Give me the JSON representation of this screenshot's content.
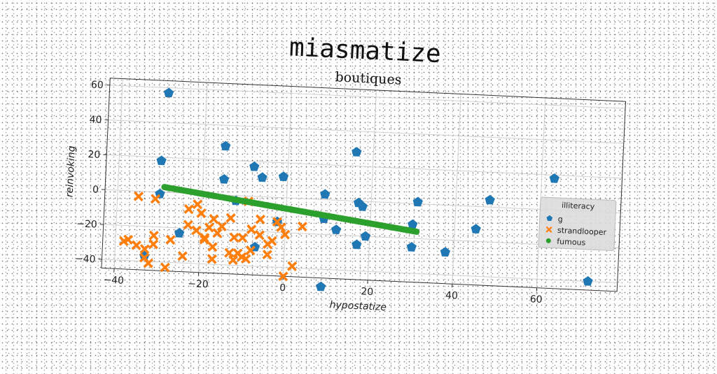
{
  "suptitle": "miasmatize",
  "chart_data": {
    "type": "scatter",
    "title": "boutiques",
    "xlabel": "hypostatize",
    "ylabel": "reinvoking",
    "xlim": [
      -43,
      79
    ],
    "ylim": [
      -45,
      64
    ],
    "xticks": [
      -40,
      -20,
      0,
      20,
      40,
      60
    ],
    "yticks": [
      -40,
      -20,
      0,
      20,
      40,
      60
    ],
    "xtick_labels": [
      "−40",
      "−20",
      "0",
      "20",
      "40",
      "60"
    ],
    "ytick_labels": [
      "−40",
      "−20",
      "0",
      "20",
      "40",
      "60"
    ],
    "grid": true,
    "legend": {
      "title": "illiteracy",
      "location": "center-right",
      "entries": [
        "g",
        "strandlooper",
        "fumous"
      ]
    },
    "series": [
      {
        "name": "g",
        "marker": "pentagon",
        "color": "#1f77b4",
        "points": [
          [
            -29,
            57
          ],
          [
            -30,
            18
          ],
          [
            -30,
            -1
          ],
          [
            -15,
            28
          ],
          [
            -15,
            9
          ],
          [
            -8,
            17
          ],
          [
            -6,
            11
          ],
          [
            -1,
            12
          ],
          [
            -12,
            -3
          ],
          [
            -2,
            -14
          ],
          [
            -25,
            -23
          ],
          [
            -33,
            -37
          ],
          [
            -7,
            -29
          ],
          [
            9,
            3
          ],
          [
            16,
            28
          ],
          [
            17,
            -1
          ],
          [
            18,
            -3
          ],
          [
            31,
            1
          ],
          [
            12,
            -17
          ],
          [
            19,
            -20
          ],
          [
            17,
            -25
          ],
          [
            30,
            -25
          ],
          [
            9,
            -11
          ],
          [
            30,
            -12
          ],
          [
            38,
            -27
          ],
          [
            48,
            4
          ],
          [
            45,
            -13
          ],
          [
            63,
            18
          ],
          [
            9,
            -50
          ],
          [
            72,
            -40
          ]
        ]
      },
      {
        "name": "strandlooper",
        "marker": "X",
        "color": "#ff7f0e",
        "points": [
          [
            -35,
            -3
          ],
          [
            -31,
            -4
          ],
          [
            -37,
            -28
          ],
          [
            -38,
            -29
          ],
          [
            -35,
            -31
          ],
          [
            -33,
            -33
          ],
          [
            -31,
            -25
          ],
          [
            -31,
            -30
          ],
          [
            -33,
            -38
          ],
          [
            -32,
            -41
          ],
          [
            -28,
            -43
          ],
          [
            -27,
            -27
          ],
          [
            -24,
            -36
          ],
          [
            -23,
            -9
          ],
          [
            -21,
            -6
          ],
          [
            -20,
            -11
          ],
          [
            -23,
            -18
          ],
          [
            -21,
            -21
          ],
          [
            -19,
            -25
          ],
          [
            -19,
            -26
          ],
          [
            -18,
            -19
          ],
          [
            -17,
            -14
          ],
          [
            -16,
            -22
          ],
          [
            -17,
            -30
          ],
          [
            -15,
            -18
          ],
          [
            -13,
            -13
          ],
          [
            -12,
            -24
          ],
          [
            -13,
            -33
          ],
          [
            -12,
            -37
          ],
          [
            -11,
            -33
          ],
          [
            -10,
            -35
          ],
          [
            -9,
            -36
          ],
          [
            -8,
            -31
          ],
          [
            -10,
            -24
          ],
          [
            -8,
            -19
          ],
          [
            -6,
            -13
          ],
          [
            -6,
            -22
          ],
          [
            -4,
            -27
          ],
          [
            -3,
            -25
          ],
          [
            -4,
            -33
          ],
          [
            -1,
            -17
          ],
          [
            -2,
            -14
          ],
          [
            0,
            -21
          ],
          [
            0,
            -45
          ],
          [
            2,
            -39
          ],
          [
            4,
            -16
          ],
          [
            -9,
            -3
          ],
          [
            -17,
            -37
          ]
        ]
      },
      {
        "name": "fumous",
        "marker": "circle",
        "color": "#2ca02c",
        "line_points": 120,
        "x_range": [
          -29,
          31
        ],
        "y_range": [
          3,
          -16
        ]
      }
    ]
  }
}
